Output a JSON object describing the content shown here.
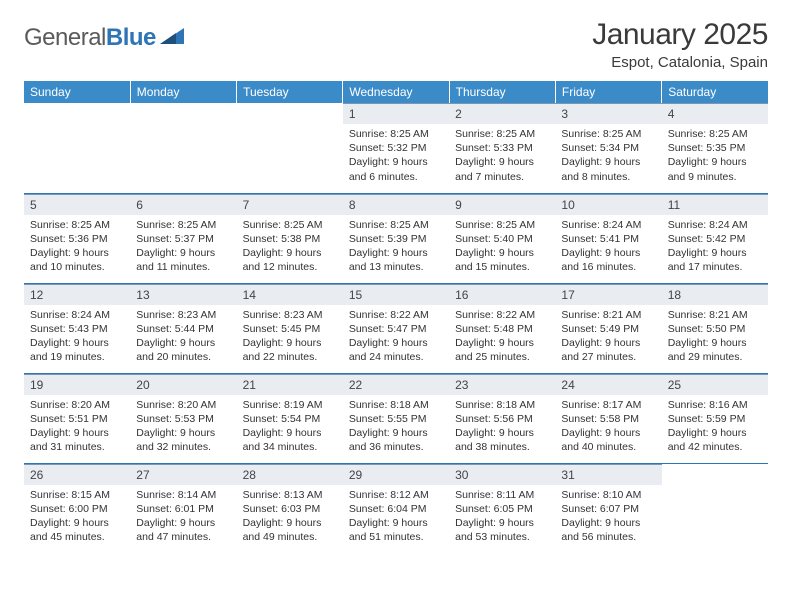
{
  "logo": {
    "word1": "General",
    "word2": "Blue"
  },
  "title": "January 2025",
  "location": "Espot, Catalonia, Spain",
  "colors": {
    "header_bg": "#3b8bc9",
    "header_text": "#ffffff",
    "daynum_bg": "#e9edf1",
    "border": "#2e75b6",
    "logo_gray": "#5a5a5a",
    "logo_blue": "#2e75b6",
    "text": "#333333"
  },
  "fonts": {
    "title_size": 30,
    "location_size": 15,
    "header_size": 12,
    "daynum_size": 12,
    "content_size": 10.5
  },
  "weekdays": [
    "Sunday",
    "Monday",
    "Tuesday",
    "Wednesday",
    "Thursday",
    "Friday",
    "Saturday"
  ],
  "weeks": [
    [
      null,
      null,
      null,
      {
        "n": "1",
        "sr": "8:25 AM",
        "ss": "5:32 PM",
        "dl": "9 hours and 6 minutes."
      },
      {
        "n": "2",
        "sr": "8:25 AM",
        "ss": "5:33 PM",
        "dl": "9 hours and 7 minutes."
      },
      {
        "n": "3",
        "sr": "8:25 AM",
        "ss": "5:34 PM",
        "dl": "9 hours and 8 minutes."
      },
      {
        "n": "4",
        "sr": "8:25 AM",
        "ss": "5:35 PM",
        "dl": "9 hours and 9 minutes."
      }
    ],
    [
      {
        "n": "5",
        "sr": "8:25 AM",
        "ss": "5:36 PM",
        "dl": "9 hours and 10 minutes."
      },
      {
        "n": "6",
        "sr": "8:25 AM",
        "ss": "5:37 PM",
        "dl": "9 hours and 11 minutes."
      },
      {
        "n": "7",
        "sr": "8:25 AM",
        "ss": "5:38 PM",
        "dl": "9 hours and 12 minutes."
      },
      {
        "n": "8",
        "sr": "8:25 AM",
        "ss": "5:39 PM",
        "dl": "9 hours and 13 minutes."
      },
      {
        "n": "9",
        "sr": "8:25 AM",
        "ss": "5:40 PM",
        "dl": "9 hours and 15 minutes."
      },
      {
        "n": "10",
        "sr": "8:24 AM",
        "ss": "5:41 PM",
        "dl": "9 hours and 16 minutes."
      },
      {
        "n": "11",
        "sr": "8:24 AM",
        "ss": "5:42 PM",
        "dl": "9 hours and 17 minutes."
      }
    ],
    [
      {
        "n": "12",
        "sr": "8:24 AM",
        "ss": "5:43 PM",
        "dl": "9 hours and 19 minutes."
      },
      {
        "n": "13",
        "sr": "8:23 AM",
        "ss": "5:44 PM",
        "dl": "9 hours and 20 minutes."
      },
      {
        "n": "14",
        "sr": "8:23 AM",
        "ss": "5:45 PM",
        "dl": "9 hours and 22 minutes."
      },
      {
        "n": "15",
        "sr": "8:22 AM",
        "ss": "5:47 PM",
        "dl": "9 hours and 24 minutes."
      },
      {
        "n": "16",
        "sr": "8:22 AM",
        "ss": "5:48 PM",
        "dl": "9 hours and 25 minutes."
      },
      {
        "n": "17",
        "sr": "8:21 AM",
        "ss": "5:49 PM",
        "dl": "9 hours and 27 minutes."
      },
      {
        "n": "18",
        "sr": "8:21 AM",
        "ss": "5:50 PM",
        "dl": "9 hours and 29 minutes."
      }
    ],
    [
      {
        "n": "19",
        "sr": "8:20 AM",
        "ss": "5:51 PM",
        "dl": "9 hours and 31 minutes."
      },
      {
        "n": "20",
        "sr": "8:20 AM",
        "ss": "5:53 PM",
        "dl": "9 hours and 32 minutes."
      },
      {
        "n": "21",
        "sr": "8:19 AM",
        "ss": "5:54 PM",
        "dl": "9 hours and 34 minutes."
      },
      {
        "n": "22",
        "sr": "8:18 AM",
        "ss": "5:55 PM",
        "dl": "9 hours and 36 minutes."
      },
      {
        "n": "23",
        "sr": "8:18 AM",
        "ss": "5:56 PM",
        "dl": "9 hours and 38 minutes."
      },
      {
        "n": "24",
        "sr": "8:17 AM",
        "ss": "5:58 PM",
        "dl": "9 hours and 40 minutes."
      },
      {
        "n": "25",
        "sr": "8:16 AM",
        "ss": "5:59 PM",
        "dl": "9 hours and 42 minutes."
      }
    ],
    [
      {
        "n": "26",
        "sr": "8:15 AM",
        "ss": "6:00 PM",
        "dl": "9 hours and 45 minutes."
      },
      {
        "n": "27",
        "sr": "8:14 AM",
        "ss": "6:01 PM",
        "dl": "9 hours and 47 minutes."
      },
      {
        "n": "28",
        "sr": "8:13 AM",
        "ss": "6:03 PM",
        "dl": "9 hours and 49 minutes."
      },
      {
        "n": "29",
        "sr": "8:12 AM",
        "ss": "6:04 PM",
        "dl": "9 hours and 51 minutes."
      },
      {
        "n": "30",
        "sr": "8:11 AM",
        "ss": "6:05 PM",
        "dl": "9 hours and 53 minutes."
      },
      {
        "n": "31",
        "sr": "8:10 AM",
        "ss": "6:07 PM",
        "dl": "9 hours and 56 minutes."
      },
      null
    ]
  ],
  "labels": {
    "sunrise": "Sunrise: ",
    "sunset": "Sunset: ",
    "daylight": "Daylight: "
  }
}
